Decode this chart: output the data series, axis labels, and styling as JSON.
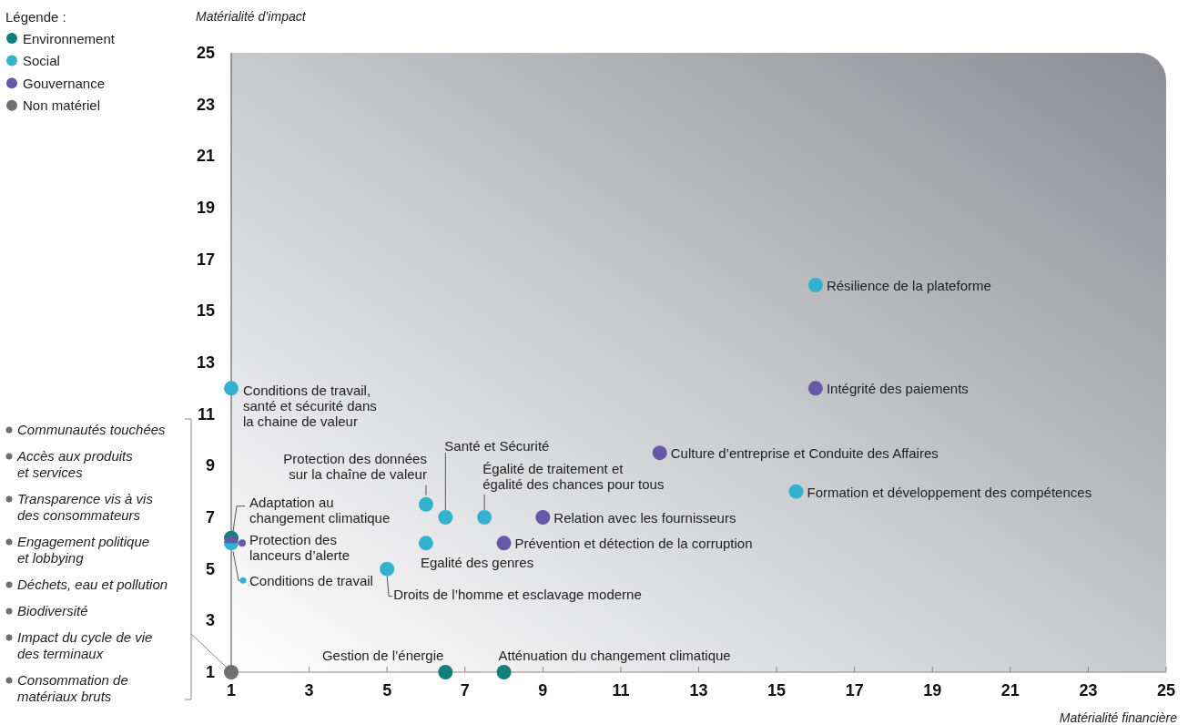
{
  "chart_data": {
    "type": "scatter",
    "xlabel": "Matérialité financière",
    "ylabel": "Matérialité d’impact",
    "legend_title": "Légende :",
    "legend": "top left",
    "marker": "circle",
    "grid": false,
    "xlim": [
      1,
      25
    ],
    "ylim": [
      1,
      25
    ],
    "xticks": [
      1,
      3,
      5,
      7,
      9,
      11,
      13,
      15,
      17,
      19,
      21,
      23,
      25
    ],
    "yticks": [
      1,
      3,
      5,
      7,
      9,
      11,
      13,
      15,
      17,
      19,
      21,
      23,
      25
    ],
    "series": [
      {
        "name": "Environnement",
        "color": "#137f7a",
        "x": [
          1,
          6.5,
          8
        ],
        "values": [
          6.2,
          1,
          1
        ]
      },
      {
        "name": "Social",
        "color": "#33b2cf",
        "x": [
          1,
          6,
          6.5,
          7.5,
          6,
          5,
          16,
          15.5,
          1
        ],
        "values": [
          12,
          7.5,
          7,
          7,
          6,
          5,
          16,
          8,
          6
        ]
      },
      {
        "name": "Gouvernance",
        "color": "#6659a8",
        "x": [
          16,
          12,
          9,
          8,
          1
        ],
        "values": [
          12,
          9.5,
          7,
          6,
          6
        ]
      },
      {
        "name": "Non matériel",
        "color": "#6e6e73",
        "x": [
          1
        ],
        "values": [
          1
        ]
      }
    ],
    "annotations": [
      {
        "text": "Conditions de travail,\nsanté et sécurité dans\nla chaine de valeur",
        "x": 1,
        "y": 12
      },
      {
        "text": "Adaptation au\nchangement climatique",
        "x": 1,
        "y": 6.2
      },
      {
        "text": "Conditions de travail",
        "x": 1,
        "y": 6
      },
      {
        "text": "Protection des\nlanceurs d’alerte",
        "x": 1,
        "y": 6
      },
      {
        "text": "Protection des données\nsur la chaîne de valeur",
        "x": 6,
        "y": 7.5
      },
      {
        "text": "Santé et Sécurité",
        "x": 6.5,
        "y": 7
      },
      {
        "text": "Égalité de traitement et\négalité des chances pour tous",
        "x": 7.5,
        "y": 7
      },
      {
        "text": "Egalité des genres",
        "x": 6,
        "y": 6
      },
      {
        "text": "Droits de l’homme et esclavage moderne",
        "x": 5,
        "y": 5
      },
      {
        "text": "Gestion de l’énergie",
        "x": 6.5,
        "y": 1
      },
      {
        "text": "Atténuation du changement climatique",
        "x": 8,
        "y": 1
      },
      {
        "text": "Relation avec les fournisseurs",
        "x": 9,
        "y": 7
      },
      {
        "text": "Prévention et détection de la corruption",
        "x": 8,
        "y": 6
      },
      {
        "text": "Culture d’entreprise et Conduite des Affaires",
        "x": 12,
        "y": 9.5
      },
      {
        "text": "Formation et développement des compétences",
        "x": 15.5,
        "y": 8
      },
      {
        "text": "Résilience de la plateforme",
        "x": 16,
        "y": 16
      },
      {
        "text": "Intégrité des paiements",
        "x": 16,
        "y": 12
      },
      "Communautés touchées",
      "Accès aux produits\net services",
      "Transparence vis à vis\ndes consommateurs",
      "Engagement politique\net lobbying",
      "Déchets, eau et pollution",
      "Biodiversité",
      "Impact du cycle de vie\ndes terminaux",
      "Consommation de\nmatériaux bruts"
    ]
  }
}
